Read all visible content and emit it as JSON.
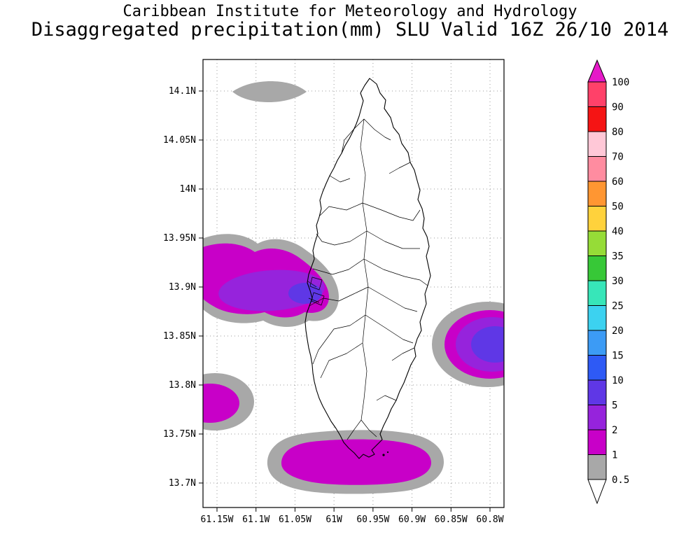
{
  "header": {
    "line1": "Caribbean Institute for Meteorology and Hydrology",
    "line2": "Disaggregated precipitation(mm) SLU Valid 16Z 26/10 2014"
  },
  "axes": {
    "lat_ticks": [
      "14.1N",
      "14.05N",
      "14N",
      "13.95N",
      "13.9N",
      "13.85N",
      "13.8N",
      "13.75N",
      "13.7N"
    ],
    "lon_ticks": [
      "61.15W",
      "61.1W",
      "61.05W",
      "61W",
      "60.95W",
      "60.9W",
      "60.85W",
      "60.8W"
    ]
  },
  "map_colors": {
    "bin_0_5_to_1": "#A8A8A8",
    "bin_1_to_2": "#C800C8",
    "bin_2_to_5": "#9623DC",
    "bin_5_to_10": "#5F37E6",
    "land_outline": "#000000",
    "grid": "#999999",
    "ocean": "#FFFFFF"
  },
  "colorbar": {
    "top_arrow_color": "#E619C8",
    "bottom_arrow_color": "#FFFFFF",
    "bottom_label": "0.5",
    "segments": [
      {
        "label": "100",
        "range_mm": "90-100",
        "color": "#FF4169"
      },
      {
        "label": "90",
        "range_mm": "80-90",
        "color": "#F51414"
      },
      {
        "label": "80",
        "range_mm": "70-80",
        "color": "#FFC8D7"
      },
      {
        "label": "70",
        "range_mm": "60-70",
        "color": "#FF8CA0"
      },
      {
        "label": "60",
        "range_mm": "50-60",
        "color": "#FF9632"
      },
      {
        "label": "50",
        "range_mm": "40-50",
        "color": "#FFD23C"
      },
      {
        "label": "40",
        "range_mm": "35-40",
        "color": "#96DC37"
      },
      {
        "label": "35",
        "range_mm": "30-35",
        "color": "#37C837"
      },
      {
        "label": "30",
        "range_mm": "25-30",
        "color": "#37E6B9"
      },
      {
        "label": "25",
        "range_mm": "20-25",
        "color": "#3CD2F0"
      },
      {
        "label": "20",
        "range_mm": "15-20",
        "color": "#3C9BF5"
      },
      {
        "label": "15",
        "range_mm": "10-15",
        "color": "#2E5AF5"
      },
      {
        "label": "10",
        "range_mm": "5-10",
        "color": "#5F37E6"
      },
      {
        "label": "5",
        "range_mm": "2-5",
        "color": "#9623DC"
      },
      {
        "label": "2",
        "range_mm": "1-2",
        "color": "#C800C8"
      },
      {
        "label": "1",
        "range_mm": "0.5-1",
        "color": "#A8A8A8"
      }
    ]
  },
  "chart_data": {
    "type": "heatmap",
    "subtype": "filled_contour_precipitation_map",
    "institution": "Caribbean Institute for Meteorology and Hydrology",
    "title": "Disaggregated precipitation(mm) SLU Valid 16Z 26/10 2014",
    "variable": "precipitation",
    "units": "mm",
    "region": "SLU (Saint Lucia)",
    "valid_time": "16Z 26/10 2014",
    "x_axis": {
      "label": "longitude",
      "ticks": [
        "61.15W",
        "61.1W",
        "61.05W",
        "61W",
        "60.95W",
        "60.9W",
        "60.85W",
        "60.8W"
      ]
    },
    "y_axis": {
      "label": "latitude",
      "ticks": [
        "14.1N",
        "14.05N",
        "14N",
        "13.95N",
        "13.9N",
        "13.85N",
        "13.8N",
        "13.75N",
        "13.7N"
      ]
    },
    "contour_levels_mm": [
      0.5,
      1,
      2,
      5,
      10,
      15,
      20,
      25,
      30,
      35,
      40,
      50,
      60,
      70,
      80,
      90,
      100
    ],
    "palette_low_to_high": [
      "#FFFFFF",
      "#A8A8A8",
      "#C800C8",
      "#9623DC",
      "#5F37E6",
      "#2E5AF5",
      "#3C9BF5",
      "#3CD2F0",
      "#37E6B9",
      "#37C837",
      "#96DC37",
      "#FFD23C",
      "#FF9632",
      "#FF8CA0",
      "#FFC8D7",
      "#F51414",
      "#FF4169",
      "#E619C8"
    ],
    "grid": true,
    "legend_position": "right",
    "features": [
      {
        "name": "offshore band northwest of island",
        "approx_lat": "14.1N",
        "approx_lon": "61.08W",
        "peak_bin_mm": "0.5-1"
      },
      {
        "name": "cell over northwest coast and adjacent sea",
        "approx_lat": "13.9N",
        "approx_lon": "61.07W",
        "peak_bin_mm": "5-10"
      },
      {
        "name": "cell east of island",
        "approx_lat": "13.85N",
        "approx_lon": "60.8W",
        "peak_bin_mm": "5-10"
      },
      {
        "name": "small patch west of island",
        "approx_lat": "13.78N",
        "approx_lon": "61.15W",
        "peak_bin_mm": "1-2"
      },
      {
        "name": "band south of island",
        "approx_lat": "13.72N",
        "approx_lon": "60.97W",
        "peak_bin_mm": "1-2"
      }
    ]
  }
}
